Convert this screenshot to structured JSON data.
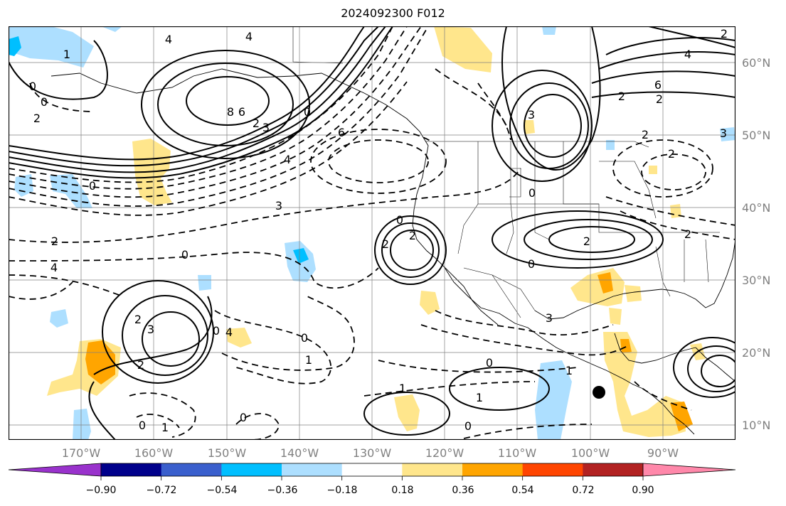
{
  "title": "2024092300 F012",
  "map": {
    "projection": "plate-carree",
    "lon_range": [
      -178,
      -78
    ],
    "lat_range": [
      8,
      65
    ],
    "lon_labels": [
      "170°W",
      "160°W",
      "150°W",
      "140°W",
      "130°W",
      "120°W",
      "110°W",
      "100°W",
      "90°W"
    ],
    "lat_labels": [
      "60°N",
      "50°N",
      "40°N",
      "30°N",
      "20°N",
      "10°N"
    ],
    "contour_labels": [
      "4",
      "1",
      "0",
      "0",
      "2",
      "8",
      "6",
      "2",
      "3",
      "4",
      "6",
      "4",
      "0",
      "0",
      "3",
      "2",
      "0",
      "4",
      "3",
      "0",
      "0",
      "2",
      "2",
      "3",
      "2",
      "2",
      "2",
      "0",
      "0",
      "1",
      "0",
      "0",
      "1",
      "0",
      "1",
      "0",
      "1",
      "3",
      "3",
      "2",
      "6",
      "4",
      "2",
      "3",
      "2",
      "2",
      "2",
      "2",
      "4",
      "0",
      "1",
      "2"
    ],
    "marker": {
      "label": "black-dot",
      "lon": -98.2,
      "lat": 14.5
    }
  },
  "colorbar": {
    "ticks": [
      "−0.90",
      "−0.72",
      "−0.54",
      "−0.36",
      "−0.18",
      "0.18",
      "0.36",
      "0.54",
      "0.72",
      "0.90"
    ],
    "colors": [
      "#9932CC",
      "#00008B",
      "#3A5FCD",
      "#00BFFF",
      "#ADDFFF",
      "#FFFFFF",
      "#FFE68C",
      "#FFA500",
      "#FF4500",
      "#B22222",
      "#FF88AA"
    ]
  }
}
